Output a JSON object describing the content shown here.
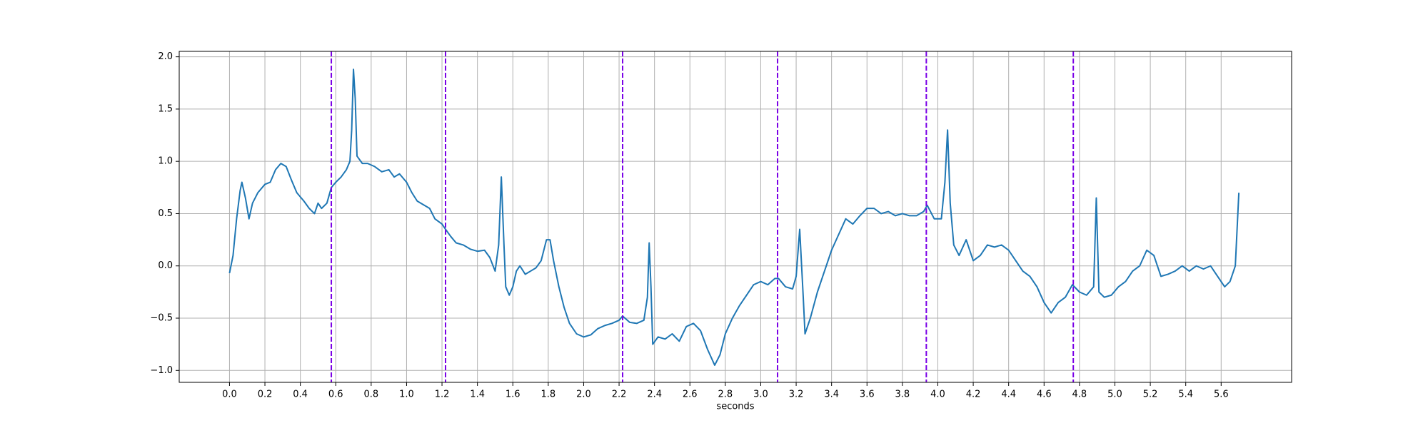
{
  "chart_data": {
    "type": "line",
    "xlabel": "seconds",
    "color": "#1f77b4",
    "x": [
      0.0,
      0.02,
      0.04,
      0.06,
      0.07,
      0.09,
      0.11,
      0.13,
      0.16,
      0.2,
      0.23,
      0.26,
      0.29,
      0.32,
      0.35,
      0.38,
      0.42,
      0.45,
      0.48,
      0.5,
      0.52,
      0.55,
      0.575,
      0.6,
      0.63,
      0.66,
      0.68,
      0.69,
      0.7,
      0.71,
      0.72,
      0.75,
      0.78,
      0.82,
      0.86,
      0.9,
      0.93,
      0.96,
      1.0,
      1.03,
      1.06,
      1.1,
      1.13,
      1.16,
      1.2,
      1.22,
      1.25,
      1.28,
      1.32,
      1.36,
      1.4,
      1.44,
      1.47,
      1.5,
      1.52,
      1.535,
      1.55,
      1.56,
      1.58,
      1.6,
      1.62,
      1.64,
      1.67,
      1.7,
      1.73,
      1.76,
      1.79,
      1.81,
      1.83,
      1.86,
      1.89,
      1.92,
      1.96,
      2.0,
      2.04,
      2.08,
      2.12,
      2.16,
      2.2,
      2.22,
      2.26,
      2.3,
      2.34,
      2.36,
      2.37,
      2.38,
      2.39,
      2.42,
      2.46,
      2.5,
      2.54,
      2.58,
      2.62,
      2.66,
      2.7,
      2.74,
      2.77,
      2.8,
      2.84,
      2.88,
      2.92,
      2.96,
      3.0,
      3.04,
      3.08,
      3.1,
      3.14,
      3.18,
      3.2,
      3.22,
      3.24,
      3.25,
      3.28,
      3.32,
      3.36,
      3.4,
      3.44,
      3.48,
      3.52,
      3.56,
      3.6,
      3.64,
      3.68,
      3.72,
      3.76,
      3.8,
      3.84,
      3.88,
      3.92,
      3.94,
      3.98,
      4.02,
      4.04,
      4.055,
      4.07,
      4.09,
      4.12,
      4.16,
      4.2,
      4.24,
      4.28,
      4.32,
      4.36,
      4.4,
      4.44,
      4.48,
      4.52,
      4.56,
      4.6,
      4.64,
      4.68,
      4.72,
      4.76,
      4.8,
      4.84,
      4.88,
      4.895,
      4.91,
      4.94,
      4.98,
      5.02,
      5.06,
      5.1,
      5.14,
      5.18,
      5.22,
      5.26,
      5.3,
      5.34,
      5.38,
      5.42,
      5.46,
      5.5,
      5.54,
      5.58,
      5.62,
      5.65,
      5.68,
      5.7
    ],
    "values": [
      -0.07,
      0.1,
      0.45,
      0.72,
      0.8,
      0.65,
      0.45,
      0.6,
      0.7,
      0.78,
      0.8,
      0.92,
      0.98,
      0.95,
      0.82,
      0.7,
      0.62,
      0.55,
      0.5,
      0.6,
      0.55,
      0.6,
      0.75,
      0.8,
      0.85,
      0.92,
      1.0,
      1.3,
      1.88,
      1.6,
      1.05,
      0.98,
      0.98,
      0.95,
      0.9,
      0.92,
      0.85,
      0.88,
      0.8,
      0.7,
      0.62,
      0.58,
      0.55,
      0.45,
      0.4,
      0.35,
      0.28,
      0.22,
      0.2,
      0.16,
      0.14,
      0.15,
      0.08,
      -0.05,
      0.2,
      0.85,
      0.2,
      -0.2,
      -0.28,
      -0.2,
      -0.05,
      0.0,
      -0.08,
      -0.05,
      -0.02,
      0.05,
      0.25,
      0.25,
      0.05,
      -0.2,
      -0.4,
      -0.55,
      -0.65,
      -0.68,
      -0.66,
      -0.6,
      -0.57,
      -0.55,
      -0.52,
      -0.48,
      -0.54,
      -0.55,
      -0.52,
      -0.3,
      0.22,
      -0.2,
      -0.75,
      -0.68,
      -0.7,
      -0.65,
      -0.72,
      -0.58,
      -0.55,
      -0.62,
      -0.8,
      -0.95,
      -0.85,
      -0.65,
      -0.5,
      -0.38,
      -0.28,
      -0.18,
      -0.15,
      -0.18,
      -0.12,
      -0.12,
      -0.2,
      -0.22,
      -0.1,
      0.35,
      -0.3,
      -0.65,
      -0.5,
      -0.25,
      -0.05,
      0.15,
      0.3,
      0.45,
      0.4,
      0.48,
      0.55,
      0.55,
      0.5,
      0.52,
      0.48,
      0.5,
      0.48,
      0.48,
      0.52,
      0.58,
      0.45,
      0.45,
      0.8,
      1.3,
      0.6,
      0.2,
      0.1,
      0.25,
      0.05,
      0.1,
      0.2,
      0.18,
      0.2,
      0.15,
      0.05,
      -0.05,
      -0.1,
      -0.2,
      -0.35,
      -0.45,
      -0.35,
      -0.3,
      -0.18,
      -0.25,
      -0.28,
      -0.2,
      0.65,
      -0.25,
      -0.3,
      -0.28,
      -0.2,
      -0.15,
      -0.05,
      0.0,
      0.15,
      0.1,
      -0.1,
      -0.08,
      -0.05,
      0.0,
      -0.05,
      0.0,
      -0.03,
      0.0,
      -0.1,
      -0.2,
      -0.15,
      0.0,
      0.7
    ],
    "vlines": {
      "x": [
        0.575,
        1.22,
        2.22,
        3.095,
        3.935,
        4.765
      ],
      "color": "#7a00e6",
      "style": "dashed"
    },
    "xlim": [
      -0.284,
      5.998
    ],
    "ylim": [
      -1.114,
      2.052
    ],
    "xticks": [
      {
        "value": 0.0,
        "label": "0.0"
      },
      0.2,
      0.4,
      0.6,
      0.8,
      {
        "value": 1.0,
        "label": "1.0"
      },
      1.2,
      1.4,
      1.6,
      1.8,
      {
        "value": 2.0,
        "label": "2.0"
      },
      2.2,
      2.4,
      2.6,
      2.8,
      {
        "value": 3.0,
        "label": "3.0"
      },
      3.2,
      3.4,
      3.6,
      3.8,
      {
        "value": 4.0,
        "label": "4.0"
      },
      4.2,
      4.4,
      4.6,
      4.8,
      {
        "value": 5.0,
        "label": "5.0"
      },
      5.2,
      5.4,
      5.6
    ],
    "yticks": [
      {
        "value": -1.0,
        "label": "−1.0"
      },
      {
        "value": -0.5,
        "label": "−0.5"
      },
      {
        "value": 0.0,
        "label": "0.0"
      },
      0.5,
      {
        "value": 1.0,
        "label": "1.0"
      },
      1.5,
      {
        "value": 2.0,
        "label": "2.0"
      }
    ],
    "grid": true
  }
}
